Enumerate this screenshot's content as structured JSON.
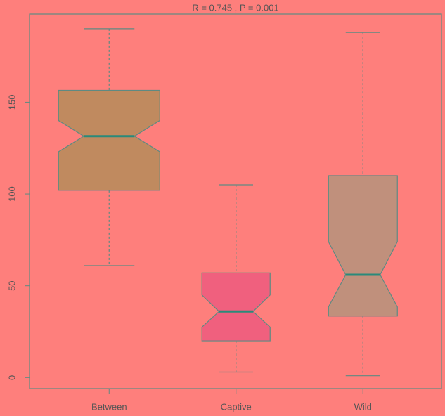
{
  "chart_data": {
    "type": "boxplot",
    "title": "R = 0.745 , P = 0.001",
    "categories": [
      "Between",
      "Captive",
      "Wild"
    ],
    "boxes": [
      {
        "min": 61,
        "q1": 102,
        "notch_low": 123,
        "median": 131.5,
        "notch_high": 140,
        "q3": 156.5,
        "max": 190,
        "color": "#c08a5f"
      },
      {
        "min": 3,
        "q1": 20,
        "notch_low": 27.5,
        "median": 36,
        "notch_high": 45,
        "q3": 57,
        "max": 105,
        "color": "#f0607e"
      },
      {
        "min": 1,
        "q1": 33.5,
        "notch_low": 38.5,
        "median": 56,
        "notch_high": 74,
        "q3": 110,
        "max": 188,
        "color": "#c0907c"
      }
    ],
    "ylim": [
      -6,
      198
    ],
    "yticks": [
      0,
      50,
      100,
      150
    ],
    "line_color": "#5e8a82",
    "median_color": "#2a8a7a"
  }
}
